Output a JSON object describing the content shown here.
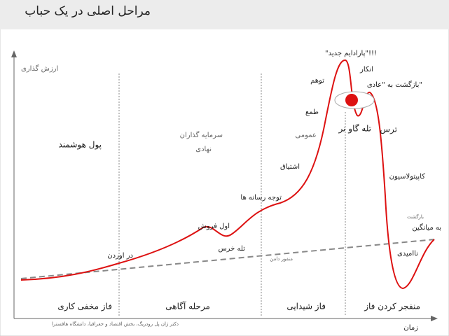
{
  "header": {
    "title": "مراحل اصلی در یک حباب"
  },
  "axes": {
    "y_label": "ارزش گذاری",
    "x_label": "زمان"
  },
  "phases": [
    "فاز مخفی کاری",
    "مرحله آگاهی",
    "فاز شیدایی",
    "منفجر کردن فاز"
  ],
  "groups": {
    "smart_money": "پول هوشمند",
    "institutional": [
      "سرمایه گذاران",
      "نهادی"
    ],
    "public": "عمومی"
  },
  "annotations": {
    "take_out": "در اوردن",
    "first_sell": "اول فروش",
    "bear_trap": "تله خرس",
    "media": "توجه رسانه ها",
    "enthusiasm": "اشتیاق",
    "greed": "طمع",
    "delusion": "توهم",
    "new_paradigm": "\"پارادایم جدید\"!!!",
    "denial": "انکار",
    "return_normal": "بازگشت به \"عادی\"",
    "bull_trap": "تله گاو نر",
    "fear": "ترس",
    "capitulation": "کاپیتولاسیون",
    "mean_return": [
      "بازگشت",
      "به میانگین"
    ],
    "despair": "ناامیدی",
    "small_note": "منفور دامن"
  },
  "credit": "دکتر ژان پل رودریگ، بخش اقتصاد و جغرافیا، دانشگاه هافسترا"
}
